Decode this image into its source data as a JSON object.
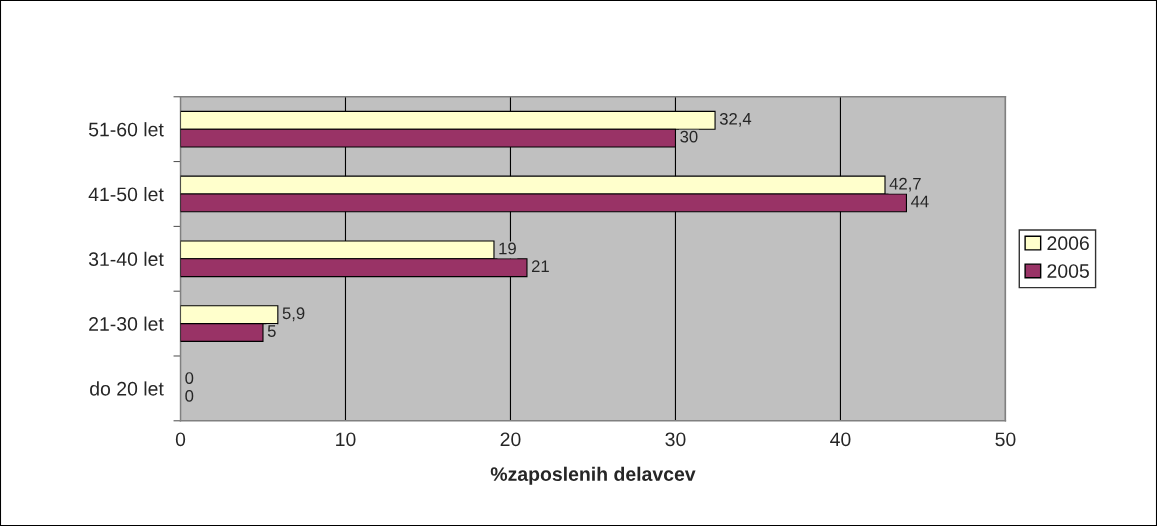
{
  "chart_data": {
    "type": "bar",
    "orientation": "horizontal",
    "xlabel": "%zaposlenih delavcev",
    "categories": [
      "51-60 let",
      "41-50 let",
      "31-40 let",
      "21-30 let",
      "do 20 let"
    ],
    "series": [
      {
        "name": "2006",
        "color": "#ffffcc",
        "values": [
          32.4,
          42.7,
          19,
          5.9,
          0
        ],
        "value_labels": [
          "32,4",
          "42,7",
          "19",
          "5,9",
          "0"
        ]
      },
      {
        "name": "2005",
        "color": "#993366",
        "values": [
          30,
          44,
          21,
          5,
          0
        ],
        "value_labels": [
          "30",
          "44",
          "21",
          "5",
          "0"
        ]
      }
    ],
    "xlim": [
      0,
      50
    ],
    "xticks": [
      0,
      10,
      20,
      30,
      40,
      50
    ],
    "grid": "x",
    "legend": "right"
  }
}
